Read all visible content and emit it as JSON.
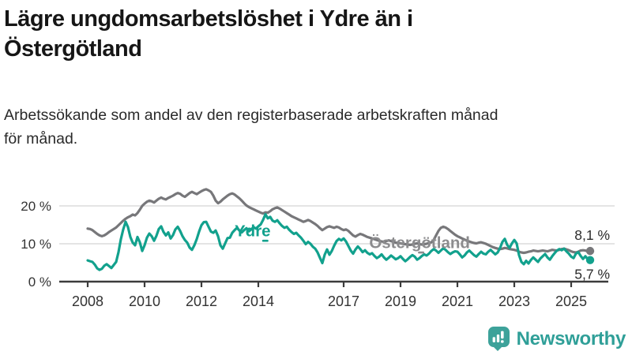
{
  "header": {
    "title_line1": "Lägre ungdomsarbetslöshet i Ydre än i",
    "title_line2": "Östergötland",
    "subtitle_line1": "Arbetssökande som andel av den registerbaserade arbetskraften månad",
    "subtitle_line2": "för månad."
  },
  "chart_data": {
    "type": "line",
    "title": "Lägre ungdomsarbetslöshet i Ydre än i Östergötland",
    "subtitle": "Arbetssökande som andel av den registerbaserade arbetskraften månad för månad.",
    "unit": "%",
    "x_start": "2008-01",
    "x_end": "2025-09",
    "x_step_months": 1,
    "xticks": [
      2008,
      2010,
      2012,
      2014,
      2017,
      2019,
      2021,
      2023,
      2025
    ],
    "yticks": [
      0,
      10,
      20
    ],
    "ytick_labels": [
      "0 %",
      "10 %",
      "20 %"
    ],
    "ylim": [
      0,
      26
    ],
    "grid": true,
    "legend_position": "inline",
    "colors": {
      "ydre": "#12a18d",
      "ostergotland": "#77777a",
      "grid": "#dcdcdc",
      "axis": "#3c3c3c",
      "text": "#2c2c2c"
    },
    "inline_labels": [
      {
        "text": "Ydre",
        "x_year": 2013.8,
        "value": 12.0,
        "color": "#12a18d"
      },
      {
        "text": "Östergötland",
        "x_year": 2019.67,
        "value": 8.9,
        "color": "#8c8c8e"
      }
    ],
    "series": [
      {
        "name": "Östergötland",
        "color": "#77777a",
        "end_label": "8,1 %",
        "end_value": 8.1,
        "values": [
          14.0,
          13.9,
          13.6,
          13.1,
          12.6,
          12.2,
          12.0,
          12.2,
          12.6,
          13.1,
          13.5,
          13.9,
          14.3,
          14.9,
          15.5,
          16.1,
          16.6,
          17.0,
          17.3,
          17.7,
          17.5,
          18.1,
          19.0,
          20.0,
          20.6,
          21.1,
          21.4,
          21.2,
          20.9,
          21.4,
          21.9,
          22.2,
          21.9,
          21.7,
          22.1,
          22.4,
          22.7,
          23.1,
          23.4,
          23.2,
          22.7,
          22.4,
          22.9,
          23.4,
          23.7,
          23.4,
          23.1,
          23.5,
          23.9,
          24.2,
          24.4,
          24.1,
          23.7,
          22.7,
          21.4,
          20.7,
          21.1,
          21.7,
          22.2,
          22.7,
          23.1,
          23.3,
          23.0,
          22.5,
          22.0,
          21.4,
          20.7,
          20.1,
          19.7,
          19.4,
          19.1,
          18.8,
          18.5,
          18.2,
          18.0,
          18.3,
          18.2,
          18.6,
          19.1,
          19.4,
          19.6,
          19.3,
          18.9,
          18.5,
          18.1,
          17.7,
          17.3,
          17.0,
          16.7,
          16.4,
          16.1,
          15.8,
          16.0,
          16.3,
          16.0,
          15.6,
          15.2,
          14.7,
          14.1,
          13.6,
          14.0,
          14.4,
          14.6,
          14.4,
          14.2,
          14.5,
          14.3,
          13.9,
          13.6,
          13.8,
          13.4,
          12.8,
          12.2,
          11.9,
          12.3,
          12.6,
          12.4,
          12.1,
          11.8,
          11.6,
          11.4,
          11.2,
          11.0,
          10.8,
          10.6,
          10.5,
          10.7,
          10.9,
          10.7,
          10.5,
          10.3,
          10.2,
          10.1,
          10.0,
          9.9,
          9.8,
          9.7,
          9.8,
          10.0,
          10.1,
          9.9,
          9.8,
          9.9,
          10.0,
          10.2,
          10.4,
          11.0,
          12.2,
          13.4,
          14.2,
          14.5,
          14.3,
          13.9,
          13.4,
          12.9,
          12.4,
          12.0,
          11.7,
          11.4,
          11.1,
          10.8,
          10.6,
          10.4,
          10.2,
          10.1,
          10.3,
          10.4,
          10.2,
          10.0,
          9.7,
          9.4,
          9.1,
          8.9,
          8.7,
          8.6,
          8.7,
          8.9,
          8.8,
          8.6,
          8.5,
          8.4,
          8.2,
          7.9,
          7.7,
          7.6,
          7.7,
          7.9,
          8.0,
          8.2,
          8.1,
          8.0,
          8.1,
          8.2,
          8.1,
          8.0,
          8.2,
          8.4,
          8.3,
          8.2,
          8.4,
          8.6,
          8.7,
          8.5,
          8.3,
          8.0,
          7.8,
          7.7,
          7.9,
          8.2,
          8.3,
          8.2,
          8.0,
          8.1
        ]
      },
      {
        "name": "Ydre",
        "color": "#12a18d",
        "end_label": "5,7 %",
        "end_value": 5.7,
        "values": [
          5.6,
          5.4,
          5.2,
          4.5,
          3.5,
          3.1,
          3.4,
          4.2,
          4.6,
          4.1,
          3.6,
          4.4,
          5.2,
          7.8,
          11.2,
          13.8,
          15.8,
          14.4,
          11.8,
          10.3,
          9.6,
          11.8,
          10.4,
          8.1,
          9.6,
          11.6,
          12.7,
          12.0,
          10.8,
          12.1,
          13.9,
          14.6,
          13.1,
          12.2,
          13.0,
          11.4,
          12.3,
          13.8,
          14.5,
          13.4,
          12.0,
          11.0,
          10.3,
          9.0,
          8.4,
          9.6,
          11.2,
          13.2,
          14.9,
          15.7,
          15.8,
          14.5,
          13.2,
          12.9,
          13.5,
          12.0,
          9.6,
          8.7,
          10.1,
          11.5,
          11.6,
          12.9,
          13.6,
          14.2,
          13.5,
          13.0,
          13.6,
          14.1,
          13.3,
          13.8,
          14.4,
          14.0,
          14.6,
          15.1,
          16.3,
          17.8,
          16.7,
          17.1,
          16.1,
          15.8,
          16.2,
          15.4,
          14.7,
          14.2,
          14.5,
          13.7,
          13.1,
          12.6,
          12.9,
          12.2,
          11.6,
          10.8,
          9.9,
          10.5,
          10.0,
          9.2,
          8.7,
          7.7,
          6.3,
          4.9,
          7.1,
          8.5,
          7.1,
          8.1,
          9.5,
          10.7,
          11.3,
          10.9,
          11.4,
          10.6,
          9.4,
          8.2,
          7.4,
          8.5,
          9.3,
          8.6,
          7.8,
          8.3,
          7.6,
          7.2,
          7.5,
          6.8,
          6.2,
          6.6,
          7.2,
          6.4,
          5.8,
          6.3,
          6.9,
          6.4,
          5.9,
          6.2,
          6.7,
          6.0,
          5.4,
          5.9,
          6.5,
          7.0,
          6.6,
          5.8,
          6.2,
          6.8,
          7.2,
          6.9,
          7.4,
          8.1,
          8.6,
          8.2,
          7.6,
          8.2,
          8.8,
          8.4,
          7.8,
          7.3,
          7.7,
          8.0,
          7.9,
          7.2,
          6.4,
          6.9,
          7.7,
          8.2,
          7.6,
          7.0,
          6.6,
          7.3,
          7.9,
          7.4,
          7.2,
          7.9,
          8.4,
          7.8,
          7.2,
          7.7,
          8.9,
          10.5,
          11.3,
          9.7,
          8.9,
          10.1,
          11.0,
          10.1,
          7.0,
          5.2,
          4.6,
          5.5,
          4.8,
          5.7,
          6.4,
          5.8,
          5.2,
          6.1,
          6.7,
          7.3,
          6.4,
          5.8,
          6.7,
          7.5,
          8.2,
          8.6,
          8.3,
          8.7,
          8.0,
          7.4,
          6.6,
          6.2,
          7.4,
          7.8,
          6.8,
          6.0,
          6.7,
          5.9,
          5.7
        ]
      }
    ]
  },
  "footer": {
    "brand": "Newsworthy",
    "brand_color": "#2f9f98",
    "logo_icon": "speech-bubble-bar-chart-icon"
  }
}
